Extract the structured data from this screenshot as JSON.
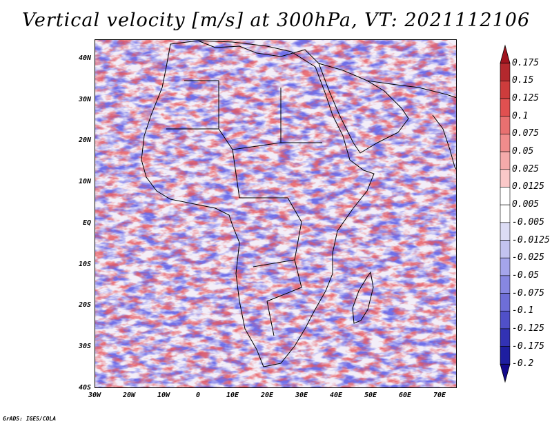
{
  "title": "Vertical velocity [m/s] at 300hPa, VT: 2021112106",
  "footer": "GrADS: IGES/COLA",
  "map": {
    "lon_range": [
      -30,
      75
    ],
    "lat_range": [
      -40,
      45
    ],
    "x_ticks": [
      "30W",
      "20W",
      "10W",
      "0",
      "10E",
      "20E",
      "30E",
      "40E",
      "50E",
      "60E",
      "70E"
    ],
    "y_ticks": [
      "40N",
      "30N",
      "20N",
      "10N",
      "EQ",
      "10S",
      "20S",
      "30S",
      "40S"
    ],
    "coast_color": "#000000"
  },
  "colorbar": {
    "levels": [
      "0.175",
      "0.15",
      "0.125",
      "0.1",
      "0.075",
      "0.05",
      "0.025",
      "0.0125",
      "0.005",
      "-0.005",
      "-0.0125",
      "-0.025",
      "-0.05",
      "-0.075",
      "-0.1",
      "-0.125",
      "-0.175",
      "-0.2"
    ],
    "colors": [
      "#a0141e",
      "#b4282d",
      "#cd3c3c",
      "#e05050",
      "#e87070",
      "#f08c8c",
      "#f5aaaa",
      "#fac8c8",
      "#ffffff",
      "#ffffff",
      "#dcdcf5",
      "#c3c3f0",
      "#a5a5eb",
      "#8787e1",
      "#6e6ed7",
      "#5050c8",
      "#3232b4",
      "#1e1ea0",
      "#140a8c"
    ]
  }
}
